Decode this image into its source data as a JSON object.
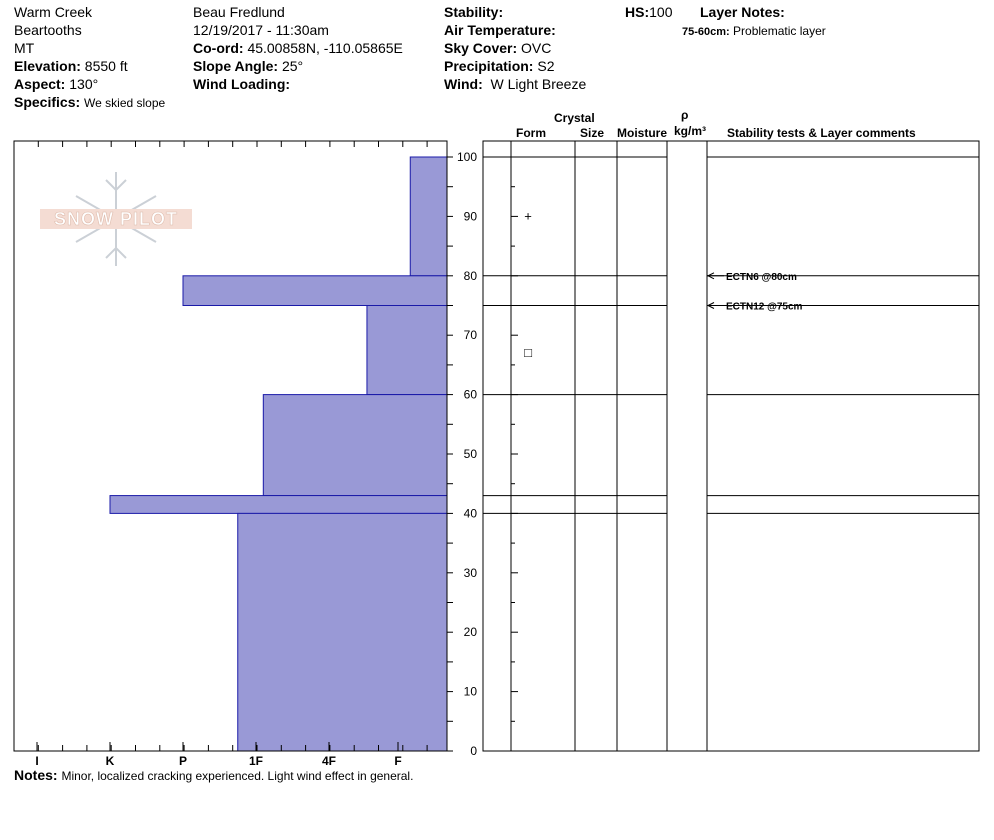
{
  "header": {
    "location": "Warm Creek",
    "range": "Beartooths",
    "state": "MT",
    "elevation_label": "Elevation:",
    "elevation_value": "8550 ft",
    "aspect_label": "Aspect:",
    "aspect_value": "130°",
    "specifics_label": "Specifics:",
    "specifics_value": "We skied slope",
    "observer": "Beau  Fredlund",
    "datetime": "12/19/2017 - 11:30am",
    "coord_label": "Co-ord:",
    "coord_value": "45.00858N, -110.05865E",
    "slope_label": "Slope Angle:",
    "slope_value": "25°",
    "wind_loading_label": "Wind Loading:",
    "stability_label": "Stability:",
    "air_temp_label": "Air Temperature:",
    "sky_label": "Sky Cover:",
    "sky_value": "OVC",
    "precip_label": "Precipitation:",
    "precip_value": "S2",
    "wind_label": "Wind:",
    "wind_value": "W Light Breeze",
    "hs_label": "HS:",
    "hs_value": "100",
    "layer_notes_label": "Layer Notes:",
    "layer_note_range": "75-60cm:",
    "layer_note_text": "Problematic layer"
  },
  "logo_text": "SNOW PILOT",
  "columns": {
    "crystal": "Crystal",
    "form": "Form",
    "size": "Size",
    "moisture": "Moisture",
    "rho": "ρ",
    "density_unit": "kg/m³",
    "comments": "Stability tests & Layer comments"
  },
  "notes": {
    "label": "Notes:",
    "text": "Minor, localized cracking experienced.  Light wind effect in general."
  },
  "colors": {
    "hardness_fill": "#9999d6",
    "hardness_stroke": "#1a1aa8"
  },
  "chart_data": {
    "type": "bar",
    "orientation": "horizontal",
    "y_axis_ticks": [
      0,
      10,
      20,
      30,
      40,
      50,
      60,
      70,
      80,
      90,
      100
    ],
    "ylim": [
      0,
      100
    ],
    "hardness_categories": [
      "I",
      "K",
      "P",
      "1F",
      "4F",
      "F"
    ],
    "hardness_scale_note": "values are hardness index: F=1, 4F=2, 1F=3, P=4, K=5, I=6",
    "layers": [
      {
        "bottom": 80,
        "top": 100,
        "hardness": 0.75
      },
      {
        "bottom": 75,
        "top": 80,
        "hardness": 4.0
      },
      {
        "bottom": 60,
        "top": 75,
        "hardness": 1.45
      },
      {
        "bottom": 43,
        "top": 60,
        "hardness": 2.9
      },
      {
        "bottom": 40,
        "top": 43,
        "hardness": 5.0
      },
      {
        "bottom": 0,
        "top": 40,
        "hardness": 3.25
      }
    ],
    "layer_boundaries": [
      100,
      80,
      75,
      60,
      43,
      40
    ],
    "grain_symbols": [
      {
        "height": 90,
        "symbol": "+"
      },
      {
        "height": 67,
        "symbol": "□"
      }
    ],
    "stability_tests": [
      {
        "height": 80,
        "label": "ECTN6 @80cm"
      },
      {
        "height": 75,
        "label": "ECTN12 @75cm"
      }
    ]
  }
}
